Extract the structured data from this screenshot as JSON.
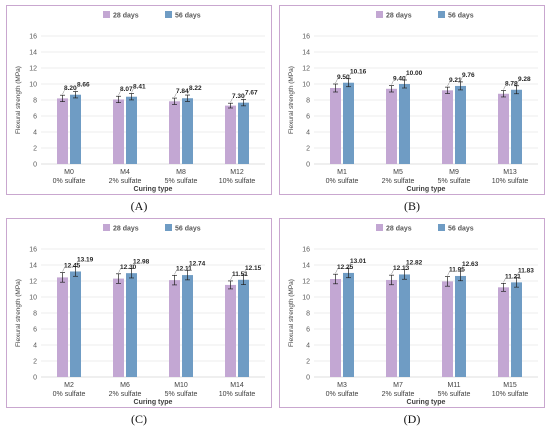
{
  "colors": {
    "28 days": "#c3a7d3",
    "56 days": "#6f9cc4",
    "frame": "#c9a7cf",
    "grid": "#d9d9d9"
  },
  "chart_data": [
    {
      "type": "bar",
      "panel_label": "(A)",
      "categories": [
        "M0\n0% sulfate",
        "M4\n2% sulfate",
        "M8\n5% sulfate",
        "M12\n10% sulfate"
      ],
      "series": [
        {
          "name": "28 days",
          "values": [
            8.2,
            8.07,
            7.84,
            7.3
          ],
          "labels": [
            "8.20",
            "8.07",
            "7.84",
            "7.30"
          ],
          "errors": [
            0.4,
            0.4,
            0.4,
            0.3
          ]
        },
        {
          "name": "56 days",
          "values": [
            8.66,
            8.41,
            8.22,
            7.67
          ],
          "labels": [
            "8.66",
            "8.41",
            "8.22",
            "7.67"
          ],
          "errors": [
            0.4,
            0.4,
            0.4,
            0.4
          ]
        }
      ],
      "xlabel": "Curing type",
      "ylabel": "Flexural strength (MPa)",
      "ylim": [
        0,
        16
      ],
      "yticks": [
        0,
        2,
        4,
        6,
        8,
        10,
        12,
        14,
        16
      ],
      "grid": true,
      "legend": "top"
    },
    {
      "type": "bar",
      "panel_label": "(B)",
      "categories": [
        "M1\n0% sulfate",
        "M5\n2% sulfate",
        "M9\n5% sulfate",
        "M13\n10% sulfate"
      ],
      "series": [
        {
          "name": "28 days",
          "values": [
            9.5,
            9.4,
            9.21,
            8.78
          ],
          "labels": [
            "9.50",
            "9.40",
            "9.21",
            "8.78"
          ],
          "errors": [
            0.5,
            0.4,
            0.4,
            0.4
          ]
        },
        {
          "name": "56 days",
          "values": [
            10.16,
            10.0,
            9.76,
            9.28
          ],
          "labels": [
            "10.16",
            "10.00",
            "9.76",
            "9.28"
          ],
          "errors": [
            0.5,
            0.5,
            0.5,
            0.5
          ]
        }
      ],
      "xlabel": "Curing type",
      "ylabel": "Flexural strength (MPa)",
      "ylim": [
        0,
        16
      ],
      "yticks": [
        0,
        2,
        4,
        6,
        8,
        10,
        12,
        14,
        16
      ],
      "grid": true,
      "legend": "top"
    },
    {
      "type": "bar",
      "panel_label": "(C)",
      "categories": [
        "M2\n0% sulfate",
        "M6\n2% sulfate",
        "M10\n5% sulfate",
        "M14\n10% sulfate"
      ],
      "series": [
        {
          "name": "28 days",
          "values": [
            12.45,
            12.3,
            12.11,
            11.51
          ],
          "labels": [
            "12.45",
            "12.30",
            "12.11",
            "11.51"
          ],
          "errors": [
            0.6,
            0.6,
            0.6,
            0.5
          ]
        },
        {
          "name": "56 days",
          "values": [
            13.19,
            12.98,
            12.74,
            12.15
          ],
          "labels": [
            "13.19",
            "12.98",
            "12.74",
            "12.15"
          ],
          "errors": [
            0.6,
            0.6,
            0.6,
            0.6
          ]
        }
      ],
      "xlabel": "Curing type",
      "ylabel": "Flexural strength (MPa)",
      "ylim": [
        0,
        16
      ],
      "yticks": [
        0,
        2,
        4,
        6,
        8,
        10,
        12,
        14,
        16
      ],
      "grid": true,
      "legend": "top"
    },
    {
      "type": "bar",
      "panel_label": "(D)",
      "categories": [
        "M3\n0% sulfate",
        "M7\n2% sulfate",
        "M11\n5% sulfate",
        "M15\n10% sulfate"
      ],
      "series": [
        {
          "name": "28 days",
          "values": [
            12.25,
            12.13,
            11.95,
            11.21
          ],
          "labels": [
            "12.25",
            "12.13",
            "11.95",
            "11.21"
          ],
          "errors": [
            0.6,
            0.6,
            0.6,
            0.5
          ]
        },
        {
          "name": "56 days",
          "values": [
            13.01,
            12.82,
            12.63,
            11.83
          ],
          "labels": [
            "13.01",
            "12.82",
            "12.63",
            "11.83"
          ],
          "errors": [
            0.6,
            0.6,
            0.6,
            0.6
          ]
        }
      ],
      "xlabel": "Curing type",
      "ylabel": "Flexural strength (MPa)",
      "ylim": [
        0,
        16
      ],
      "yticks": [
        0,
        2,
        4,
        6,
        8,
        10,
        12,
        14,
        16
      ],
      "grid": true,
      "legend": "top"
    }
  ]
}
